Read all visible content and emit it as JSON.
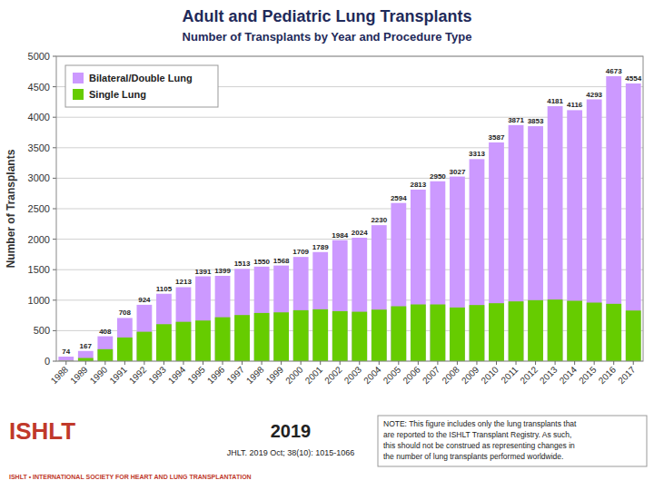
{
  "chart_data": {
    "type": "bar",
    "title": "Adult and Pediatric Lung Transplants",
    "subtitle": "Number of Transplants by Year and Procedure Type",
    "y_label": "Number of Transplants",
    "categories": [
      "1988",
      "1989",
      "1990",
      "1991",
      "1992",
      "1993",
      "1994",
      "1995",
      "1996",
      "1997",
      "1998",
      "1999",
      "2000",
      "2001",
      "2002",
      "2003",
      "2004",
      "2005",
      "2006",
      "2007",
      "2008",
      "2009",
      "2010",
      "2011",
      "2012",
      "2013",
      "2014",
      "2015",
      "2016",
      "2017"
    ],
    "series": [
      {
        "name": "Bilateral/Double Lung",
        "color": "#cc99ff",
        "data_labels": true,
        "values": [
          74,
          167,
          408,
          708,
          924,
          1105,
          1213,
          1391,
          1399,
          1513,
          1550,
          1568,
          1709,
          1789,
          1984,
          2024,
          2230,
          2594,
          2813,
          2950,
          3027,
          3313,
          3587,
          3871,
          3853,
          4181,
          4116,
          4293,
          4673,
          4554
        ]
      },
      {
        "name": "Single Lung",
        "color": "#66cc00",
        "values": [
          7,
          52,
          196,
          388,
          482,
          606,
          645,
          666,
          720,
          756,
          790,
          800,
          835,
          850,
          820,
          810,
          845,
          900,
          930,
          930,
          880,
          920,
          950,
          980,
          1000,
          1010,
          990,
          960,
          940,
          830
        ]
      }
    ],
    "stacked": false,
    "ylim": [
      0,
      5000
    ],
    "yticks": [
      0,
      500,
      1000,
      1500,
      2000,
      2500,
      3000,
      3500,
      4000,
      4500,
      5000
    ],
    "grid": true,
    "legend": "upper left",
    "annotations": [
      "ISHLT",
      "ISHLT • INTERNATIONAL SOCIETY FOR HEART AND LUNG TRANSPLANTATION",
      "2019",
      "JHLT. 2019 Oct; 38(10): 1015-1066",
      "NOTE: This figure includes only the lung transplants that\nare reported to the ISHLT Transplant Registry.  As such,\nthis should not be construed as representing changes in\nthe number of lung transplants performed worldwide."
    ]
  }
}
